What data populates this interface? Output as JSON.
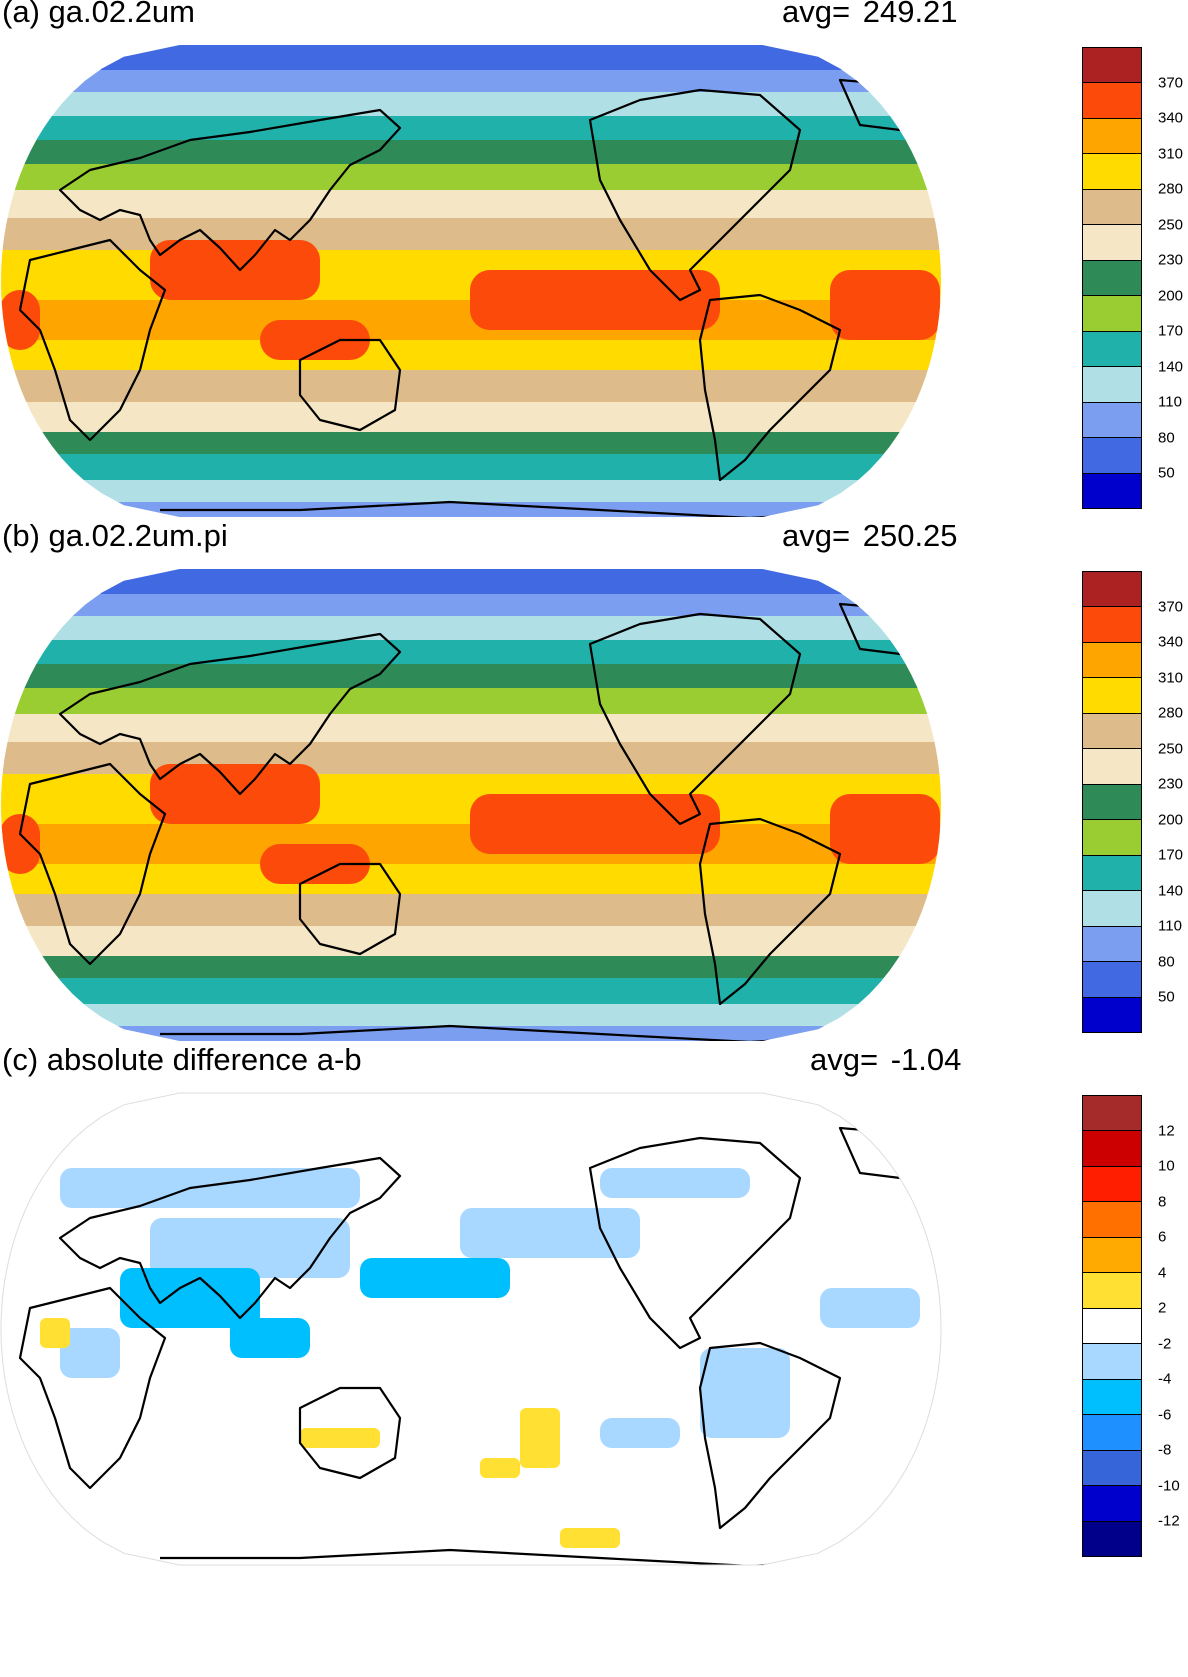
{
  "panels": [
    {
      "id": "a",
      "title": "(a) ga.02.2um",
      "avg_label": "avg=",
      "avg_value": "249.21",
      "kind": "absolute",
      "colorbar": {
        "labels": [
          "370",
          "340",
          "310",
          "280",
          "250",
          "230",
          "200",
          "170",
          "140",
          "110",
          "80",
          "50"
        ],
        "colors": [
          "#ac2121",
          "#fc4a0a",
          "#ffa500",
          "#ffdb00",
          "#ddbb8a",
          "#f5e6c5",
          "#2e8b57",
          "#9acd32",
          "#20b2aa",
          "#b0e0e6",
          "#7b9ef0",
          "#4169e1",
          "#0000cd"
        ]
      }
    },
    {
      "id": "b",
      "title": "(b) ga.02.2um.pi",
      "avg_label": "avg=",
      "avg_value": "250.25",
      "kind": "absolute",
      "colorbar": {
        "labels": [
          "370",
          "340",
          "310",
          "280",
          "250",
          "230",
          "200",
          "170",
          "140",
          "110",
          "80",
          "50"
        ],
        "colors": [
          "#ac2121",
          "#fc4a0a",
          "#ffa500",
          "#ffdb00",
          "#ddbb8a",
          "#f5e6c5",
          "#2e8b57",
          "#9acd32",
          "#20b2aa",
          "#b0e0e6",
          "#7b9ef0",
          "#4169e1",
          "#0000cd"
        ]
      }
    },
    {
      "id": "c",
      "title": "(c) absolute difference a-b",
      "avg_label": "avg=",
      "avg_value": "-1.04",
      "kind": "difference",
      "colorbar": {
        "labels": [
          "12",
          "10",
          "8",
          "6",
          "4",
          "2",
          "-2",
          "-4",
          "-6",
          "-8",
          "-10",
          "-12"
        ],
        "colors": [
          "#a52a2a",
          "#cc0000",
          "#ff1e00",
          "#ff7000",
          "#ffaa00",
          "#ffe033",
          "#ffffff",
          "#a8d8ff",
          "#00bfff",
          "#1e90ff",
          "#3565d9",
          "#0000cd",
          "#00008b"
        ]
      }
    }
  ]
}
